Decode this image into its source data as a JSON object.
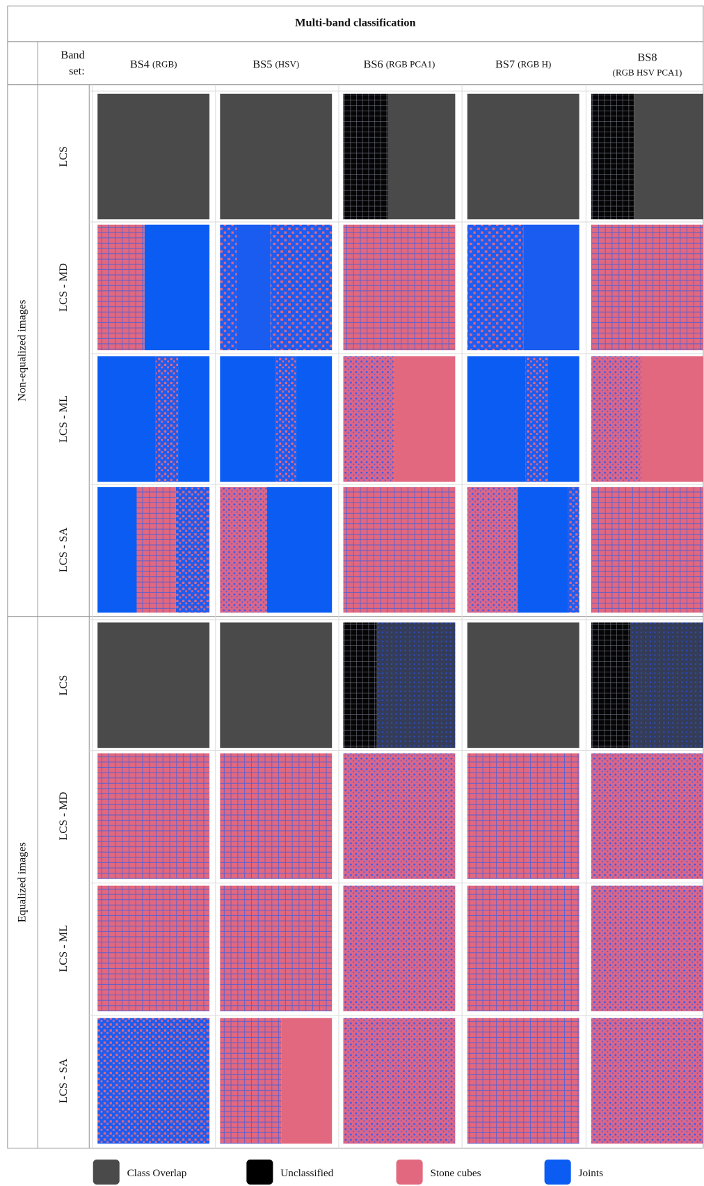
{
  "header": {
    "title": "Multi-band classification",
    "band_set_label": [
      "Band",
      "set:"
    ]
  },
  "columns": [
    {
      "name": "BS4",
      "bands": "(RGB)"
    },
    {
      "name": "BS5",
      "bands": "(HSV)"
    },
    {
      "name": "BS6",
      "bands": "(RGB PCA1)"
    },
    {
      "name": "BS7",
      "bands": "(RGB H)"
    },
    {
      "name": "BS8",
      "bands": "(RGB HSV PCA1)"
    }
  ],
  "row_groups": [
    {
      "label": "Non-equalized images",
      "rows": [
        "LCS",
        "LCS - MD",
        "LCS - ML",
        "LCS - SA"
      ]
    },
    {
      "label": "Equalized images",
      "rows": [
        "LCS",
        "LCS - MD",
        "LCS - ML",
        "LCS - SA"
      ]
    }
  ],
  "legend": [
    {
      "label": "Class Overlap",
      "color": "#4a4a4a"
    },
    {
      "label": "Unclassified",
      "color": "#000000"
    },
    {
      "label": "Stone cubes",
      "color": "#e2687f"
    },
    {
      "label": "Joints",
      "color": "#0a5cf2"
    }
  ]
}
